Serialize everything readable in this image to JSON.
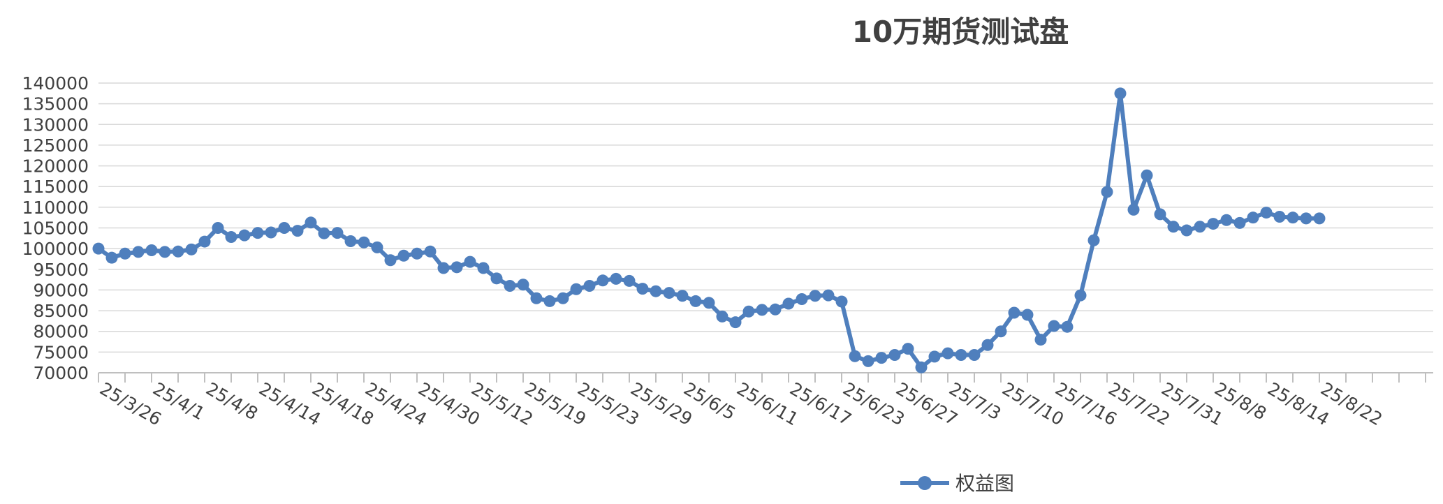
{
  "chart_data": {
    "type": "line",
    "title": "10万期货测试盘",
    "xlabel": "",
    "ylabel": "",
    "ylim": [
      70000,
      140000
    ],
    "yticks": [
      70000,
      75000,
      80000,
      85000,
      90000,
      95000,
      100000,
      105000,
      110000,
      115000,
      120000,
      125000,
      130000,
      135000,
      140000
    ],
    "x_tick_labels": [
      "25/3/26",
      "25/4/1",
      "25/4/8",
      "25/4/14",
      "25/4/18",
      "25/4/24",
      "25/4/30",
      "25/5/12",
      "25/5/19",
      "25/5/23",
      "25/5/29",
      "25/6/5",
      "25/6/11",
      "25/6/17",
      "25/6/23",
      "25/6/27",
      "25/7/3",
      "25/7/10",
      "25/7/16",
      "25/7/22",
      "25/7/31",
      "25/8/8",
      "25/8/14",
      "25/8/22"
    ],
    "grid": true,
    "legend": "bottom",
    "series": [
      {
        "name": "权益图",
        "color": "#4f7fbd",
        "values": [
          100000,
          97800,
          98800,
          99200,
          99600,
          99200,
          99300,
          99800,
          101700,
          105000,
          102800,
          103200,
          103800,
          103900,
          105000,
          104300,
          106300,
          103700,
          103800,
          101800,
          101500,
          100300,
          97200,
          98300,
          98800,
          99300,
          95300,
          95500,
          96800,
          95300,
          92800,
          91000,
          91300,
          88000,
          87300,
          88000,
          90200,
          91000,
          92300,
          92700,
          92200,
          90300,
          89700,
          89300,
          88600,
          87300,
          86900,
          83600,
          82200,
          84800,
          85200,
          85300,
          86700,
          87800,
          88600,
          88700,
          87200,
          74000,
          72800,
          73600,
          74300,
          75800,
          71300,
          73900,
          74700,
          74300,
          74300,
          76700,
          80000,
          84500,
          84000,
          78000,
          81300,
          81100,
          88700,
          102000,
          113700,
          137500,
          109400,
          117700,
          108300,
          105300,
          104400,
          105300,
          106000,
          106900,
          106200,
          107500,
          108700,
          107700,
          107500,
          107300,
          107300
        ]
      }
    ]
  }
}
